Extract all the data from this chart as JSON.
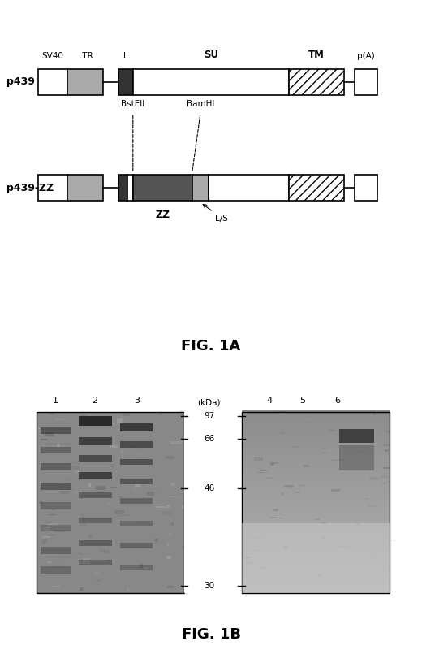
{
  "fig_width": 5.2,
  "fig_height": 8.16,
  "dpi": 100,
  "bg_color": "#ffffff",
  "fig1a": {
    "title": "FIG. 1A",
    "p439_label": "p439",
    "p439zz_label": "p439-ZZ",
    "labels_top": [
      "SV40",
      "LTR",
      "L",
      "SU",
      "TM",
      "p(A)"
    ],
    "restriction_sites": [
      "BstEII",
      "BamHI"
    ],
    "labels_bottom": [
      "ZZ",
      "L/S"
    ]
  },
  "fig1b": {
    "title": "FIG. 1B",
    "lane_labels": [
      "1",
      "2",
      "3",
      "4",
      "5",
      "6"
    ],
    "mw_label": "(kDa)",
    "mw_values": [
      97,
      66,
      46,
      30
    ]
  }
}
